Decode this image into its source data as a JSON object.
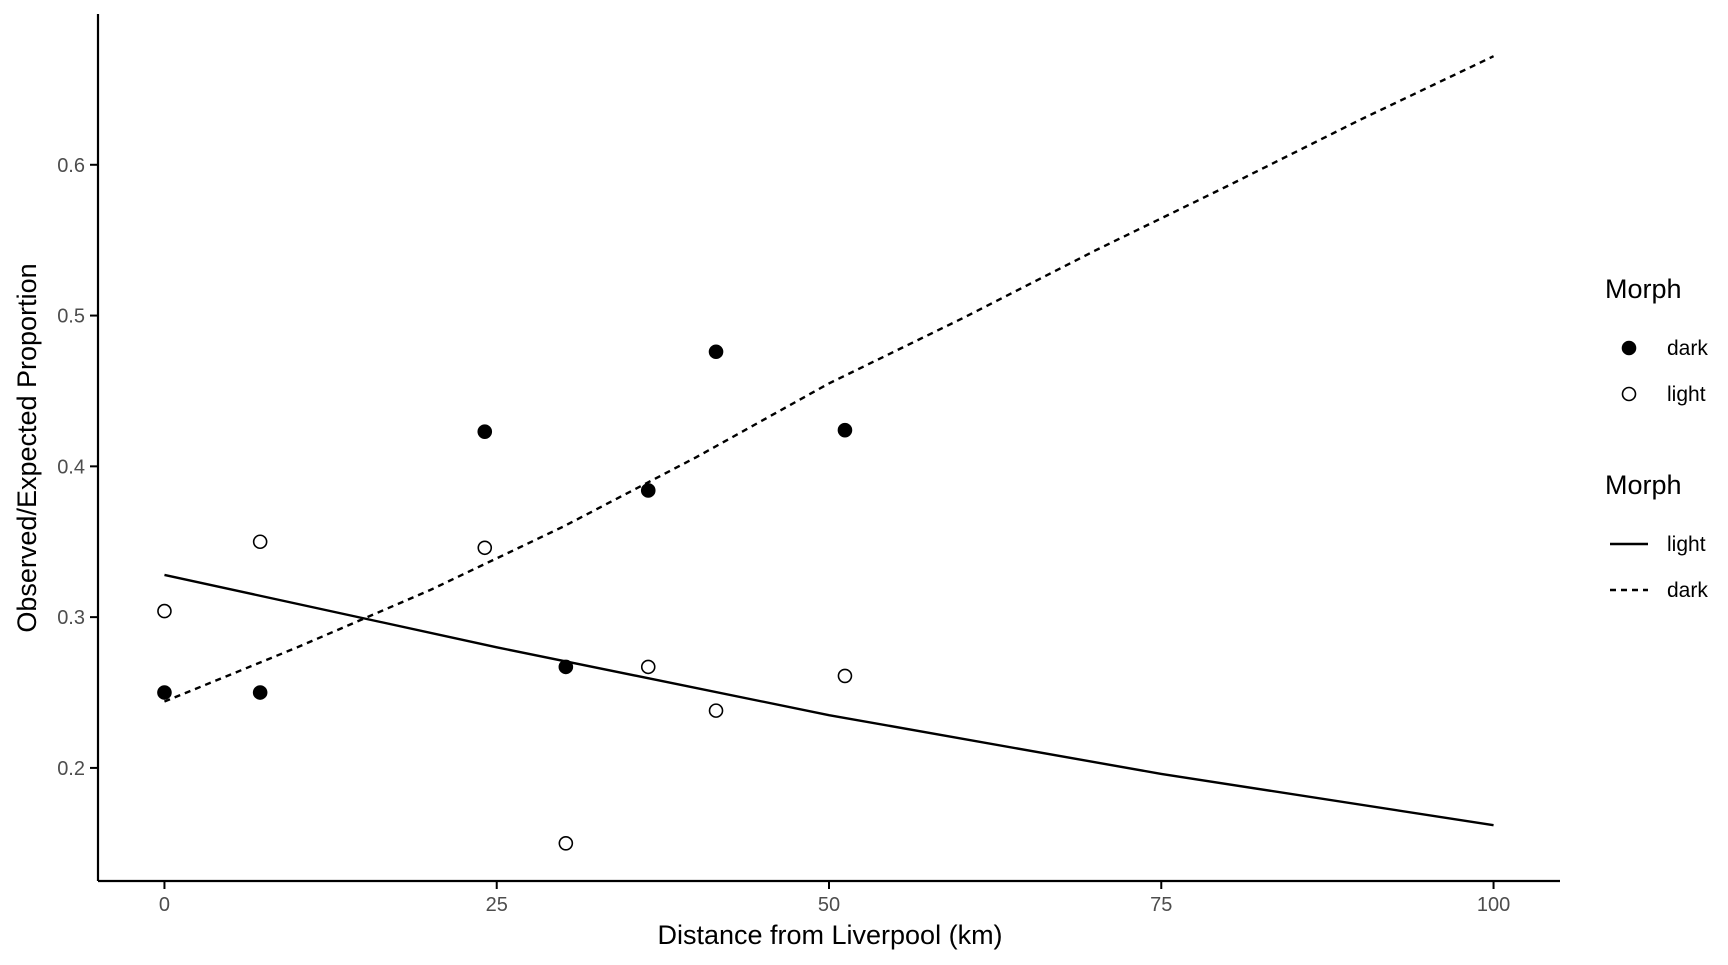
{
  "chart_data": {
    "type": "scatter",
    "title": "",
    "xlabel": "Distance from Liverpool (km)",
    "ylabel": "Observed/Expected Proportion",
    "xlim": [
      -5,
      105
    ],
    "ylim": [
      0.125,
      0.7
    ],
    "xticks": [
      0,
      25,
      50,
      75,
      100
    ],
    "yticks": [
      0.2,
      0.3,
      0.4,
      0.5,
      0.6
    ],
    "xtick_labels": [
      "0",
      "25",
      "50",
      "75",
      "100"
    ],
    "ytick_labels": [
      "0.2",
      "0.3",
      "0.4",
      "0.5",
      "0.6"
    ],
    "grid": false,
    "legend_position": "right",
    "points": [
      {
        "morph": "dark",
        "points": [
          {
            "x": 0,
            "y": 0.25
          },
          {
            "x": 7.2,
            "y": 0.25
          },
          {
            "x": 24.1,
            "y": 0.423
          },
          {
            "x": 30.2,
            "y": 0.267
          },
          {
            "x": 36.4,
            "y": 0.384
          },
          {
            "x": 41.5,
            "y": 0.476
          },
          {
            "x": 51.2,
            "y": 0.424
          }
        ]
      },
      {
        "morph": "light",
        "points": [
          {
            "x": 0,
            "y": 0.304
          },
          {
            "x": 7.2,
            "y": 0.35
          },
          {
            "x": 24.1,
            "y": 0.346
          },
          {
            "x": 30.2,
            "y": 0.15
          },
          {
            "x": 36.4,
            "y": 0.267
          },
          {
            "x": 41.5,
            "y": 0.238
          },
          {
            "x": 51.2,
            "y": 0.261
          }
        ]
      }
    ],
    "lines": [
      {
        "morph": "light",
        "style": "solid",
        "points": [
          {
            "x": 0,
            "y": 0.328
          },
          {
            "x": 25,
            "y": 0.28
          },
          {
            "x": 50,
            "y": 0.235
          },
          {
            "x": 75,
            "y": 0.196
          },
          {
            "x": 100,
            "y": 0.162
          }
        ]
      },
      {
        "morph": "dark",
        "style": "dashed",
        "points": [
          {
            "x": 0,
            "y": 0.244
          },
          {
            "x": 10,
            "y": 0.28
          },
          {
            "x": 20,
            "y": 0.318
          },
          {
            "x": 30,
            "y": 0.36
          },
          {
            "x": 40,
            "y": 0.406
          },
          {
            "x": 50,
            "y": 0.455
          },
          {
            "x": 60,
            "y": 0.498
          },
          {
            "x": 70,
            "y": 0.543
          },
          {
            "x": 80,
            "y": 0.586
          },
          {
            "x": 90,
            "y": 0.63
          },
          {
            "x": 100,
            "y": 0.672
          }
        ]
      }
    ],
    "legends": [
      {
        "title": "Morph",
        "kind": "point",
        "entries": [
          {
            "label": "dark",
            "shape": "filled-circle"
          },
          {
            "label": "light",
            "shape": "open-circle"
          }
        ]
      },
      {
        "title": "Morph",
        "kind": "line",
        "entries": [
          {
            "label": "light",
            "style": "solid"
          },
          {
            "label": "dark",
            "style": "dashed"
          }
        ]
      }
    ],
    "colors": {
      "ink": "#000000",
      "tick_text": "#4d4d4d",
      "background": "#ffffff"
    }
  }
}
